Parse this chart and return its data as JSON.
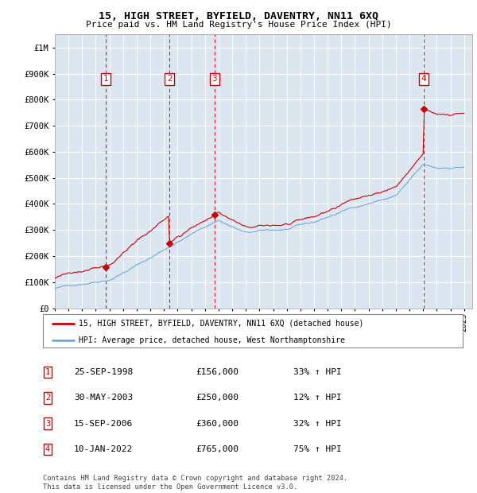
{
  "title": "15, HIGH STREET, BYFIELD, DAVENTRY, NN11 6XQ",
  "subtitle": "Price paid vs. HM Land Registry's House Price Index (HPI)",
  "plot_bg_color": "#dce6f1",
  "ylim": [
    0,
    1050000
  ],
  "yticks": [
    0,
    100000,
    200000,
    300000,
    400000,
    500000,
    600000,
    700000,
    800000,
    900000,
    1000000
  ],
  "ytick_labels": [
    "£0",
    "£100K",
    "£200K",
    "£300K",
    "£400K",
    "£500K",
    "£600K",
    "£700K",
    "£800K",
    "£900K",
    "£1M"
  ],
  "xlim_start": 1995.4,
  "xlim_end": 2025.6,
  "legend_line1": "15, HIGH STREET, BYFIELD, DAVENTRY, NN11 6XQ (detached house)",
  "legend_line2": "HPI: Average price, detached house, West Northamptonshire",
  "footnote": "Contains HM Land Registry data © Crown copyright and database right 2024.\nThis data is licensed under the Open Government Licence v3.0.",
  "sale_markers": [
    {
      "num": 1,
      "year": 1998.73,
      "price": 156000,
      "label": "25-SEP-1998",
      "amount": "£156,000",
      "pct": "33% ↑ HPI"
    },
    {
      "num": 2,
      "year": 2003.41,
      "price": 250000,
      "label": "30-MAY-2003",
      "amount": "£250,000",
      "pct": "12% ↑ HPI"
    },
    {
      "num": 3,
      "year": 2006.71,
      "price": 360000,
      "label": "15-SEP-2006",
      "amount": "£360,000",
      "pct": "32% ↑ HPI"
    },
    {
      "num": 4,
      "year": 2022.03,
      "price": 765000,
      "label": "10-JAN-2022",
      "amount": "£765,000",
      "pct": "75% ↑ HPI"
    }
  ],
  "hpi_line_color": "#6fa8dc",
  "price_line_color": "#cc0000",
  "marker_box_color": "#cc0000",
  "vline_color": "#cc0000",
  "grid_color": "#ffffff"
}
